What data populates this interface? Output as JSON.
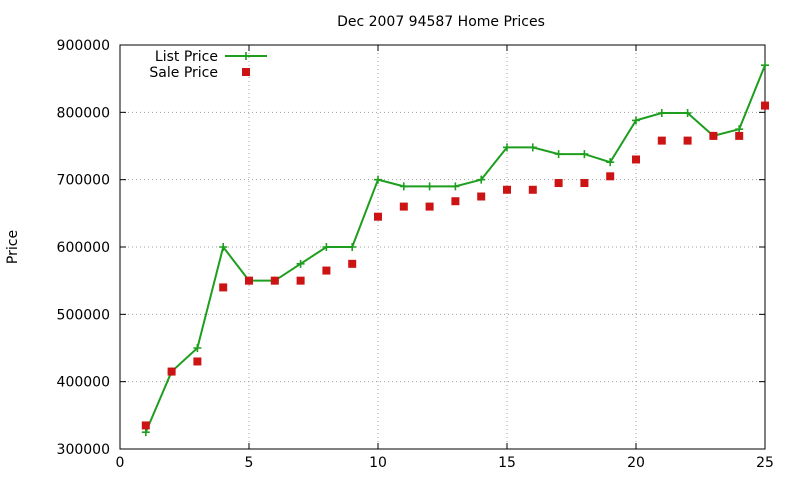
{
  "chart_data": {
    "type": "line",
    "title": "Dec 2007 94587 Home Prices",
    "xlabel": "",
    "ylabel": "Price",
    "xlim": [
      0,
      25
    ],
    "ylim": [
      300000,
      900000
    ],
    "x_ticks": [
      0,
      5,
      10,
      15,
      20,
      25
    ],
    "y_ticks": [
      300000,
      400000,
      500000,
      600000,
      700000,
      800000,
      900000
    ],
    "grid": true,
    "legend_position": "top-left",
    "series": [
      {
        "name": "List Price",
        "style": "line-plus",
        "color": "#1e9e1e",
        "x": [
          1,
          2,
          3,
          4,
          5,
          6,
          7,
          8,
          9,
          10,
          11,
          12,
          13,
          14,
          15,
          16,
          17,
          18,
          19,
          20,
          21,
          22,
          23,
          24,
          25
        ],
        "y": [
          325000,
          415000,
          450000,
          600000,
          550000,
          550000,
          575000,
          600000,
          600000,
          700000,
          690000,
          690000,
          690000,
          700000,
          748000,
          748000,
          738000,
          738000,
          726000,
          788000,
          799000,
          799000,
          765000,
          775000,
          870000
        ]
      },
      {
        "name": "Sale Price",
        "style": "square-points",
        "color": "#cc1414",
        "x": [
          1,
          2,
          3,
          4,
          5,
          6,
          7,
          8,
          9,
          10,
          11,
          12,
          13,
          14,
          15,
          16,
          17,
          18,
          19,
          20,
          21,
          22,
          23,
          24,
          25
        ],
        "y": [
          335000,
          415000,
          430000,
          540000,
          550000,
          550000,
          550000,
          565000,
          575000,
          645000,
          660000,
          660000,
          668000,
          675000,
          685000,
          685000,
          695000,
          695000,
          705000,
          730000,
          758000,
          758000,
          765000,
          765000,
          810000
        ]
      }
    ]
  }
}
